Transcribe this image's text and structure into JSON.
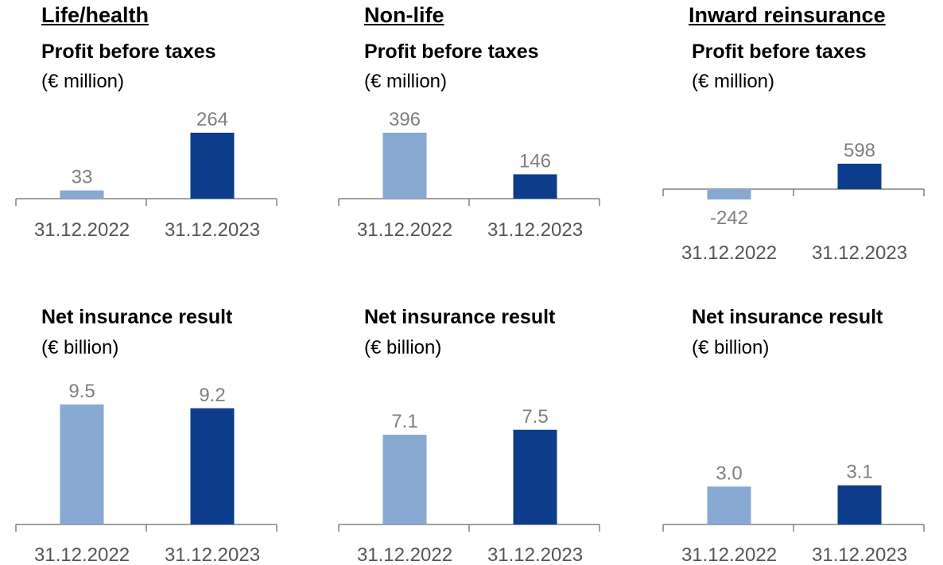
{
  "colors": {
    "light": "#87a8d0",
    "dark": "#0e3c8c",
    "axis": "#808080",
    "label": "#7f7f7f"
  },
  "sections": [
    {
      "title": "Life/health",
      "top": {
        "metric": "Profit before taxes",
        "unit": "(€ million)"
      },
      "bottom": {
        "metric": "Net insurance result",
        "unit": "(€ billion)"
      }
    },
    {
      "title": "Non-life",
      "top": {
        "metric": "Profit before taxes",
        "unit": "(€ million)"
      },
      "bottom": {
        "metric": "Net insurance result",
        "unit": "(€ billion)"
      }
    },
    {
      "title": "Inward reinsurance",
      "top": {
        "metric": "Profit before taxes",
        "unit": "(€ million)"
      },
      "bottom": {
        "metric": "Net insurance result",
        "unit": "(€ billion)"
      }
    }
  ],
  "chart_data": [
    {
      "type": "bar",
      "section": "Life/health",
      "title": "Profit before taxes",
      "ylabel": "(€ million)",
      "categories": [
        "31.12.2022",
        "31.12.2023"
      ],
      "values": [
        33,
        264
      ],
      "labels": [
        "33",
        "264"
      ],
      "ylim": [
        0,
        264
      ]
    },
    {
      "type": "bar",
      "section": "Non-life",
      "title": "Profit before taxes",
      "ylabel": "(€ million)",
      "categories": [
        "31.12.2022",
        "31.12.2023"
      ],
      "values": [
        396,
        146
      ],
      "labels": [
        "396",
        "146"
      ],
      "ylim": [
        0,
        396
      ]
    },
    {
      "type": "bar",
      "section": "Inward reinsurance",
      "title": "Profit before taxes",
      "ylabel": "(€ million)",
      "categories": [
        "31.12.2022",
        "31.12.2023"
      ],
      "values": [
        -242,
        598
      ],
      "labels": [
        "-242",
        "598"
      ],
      "ylim": [
        -242,
        598
      ]
    },
    {
      "type": "bar",
      "section": "Life/health",
      "title": "Net insurance result",
      "ylabel": "(€ billion)",
      "categories": [
        "31.12.2022",
        "31.12.2023"
      ],
      "values": [
        9.5,
        9.2
      ],
      "labels": [
        "9.5",
        "9.2"
      ],
      "ylim": [
        0,
        9.5
      ]
    },
    {
      "type": "bar",
      "section": "Non-life",
      "title": "Net insurance result",
      "ylabel": "(€ billion)",
      "categories": [
        "31.12.2022",
        "31.12.2023"
      ],
      "values": [
        7.1,
        7.5
      ],
      "labels": [
        "7.1",
        "7.5"
      ],
      "ylim": [
        0,
        9.5
      ]
    },
    {
      "type": "bar",
      "section": "Inward reinsurance",
      "title": "Net insurance result",
      "ylabel": "(€ billion)",
      "categories": [
        "31.12.2022",
        "31.12.2023"
      ],
      "values": [
        3.0,
        3.1
      ],
      "labels": [
        "3.0",
        "3.1"
      ],
      "ylim": [
        0,
        9.5
      ]
    }
  ]
}
